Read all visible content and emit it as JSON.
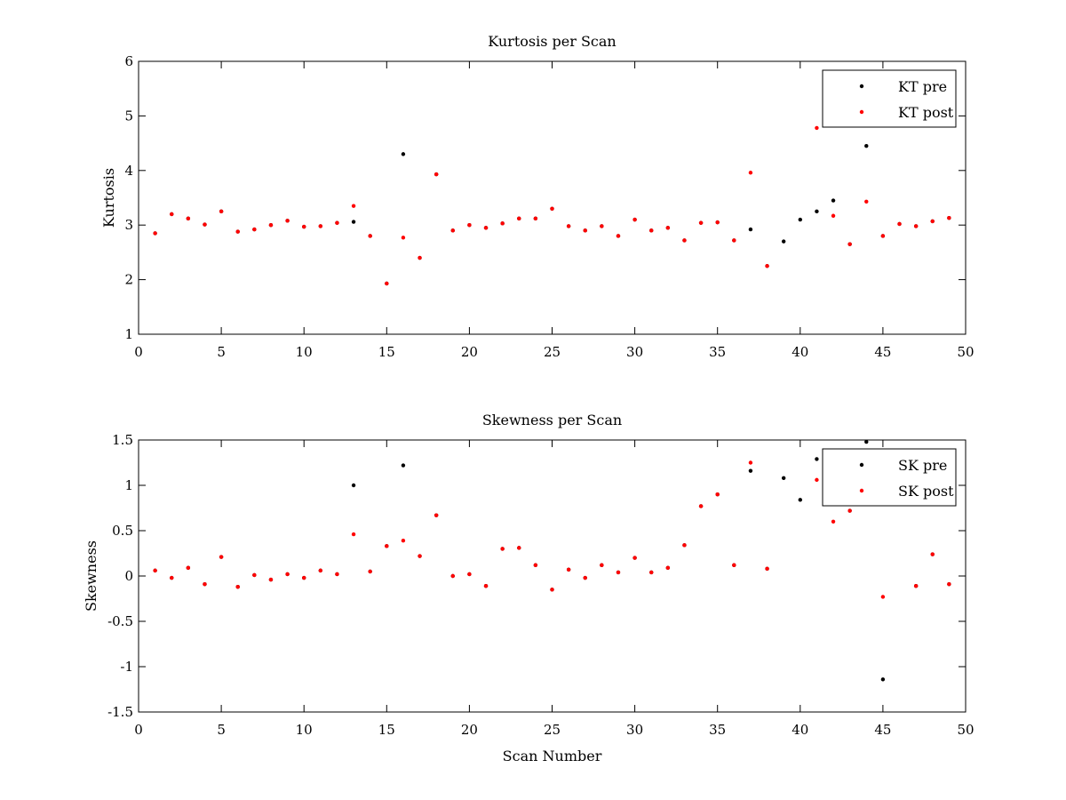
{
  "chart_data": [
    {
      "type": "scatter",
      "title": "Kurtosis per Scan",
      "xlabel": "",
      "ylabel": "Kurtosis",
      "xlim": [
        0,
        50
      ],
      "ylim": [
        1,
        6
      ],
      "xticks": [
        0,
        5,
        10,
        15,
        20,
        25,
        30,
        35,
        40,
        45,
        50
      ],
      "yticks": [
        1,
        2,
        3,
        4,
        5,
        6
      ],
      "xtick_labels": [
        "0",
        "5",
        "10",
        "15",
        "20",
        "25",
        "30",
        "35",
        "40",
        "45",
        "50"
      ],
      "ytick_labels": [
        "1",
        "2",
        "3",
        "4",
        "5",
        "6"
      ],
      "grid": false,
      "legend": "top-right",
      "series": [
        {
          "name": "KT pre",
          "color": "#000000",
          "points": [
            [
              1,
              2.85
            ],
            [
              2,
              3.2
            ],
            [
              3,
              3.12
            ],
            [
              4,
              3.01
            ],
            [
              5,
              3.25
            ],
            [
              6,
              2.88
            ],
            [
              7,
              2.92
            ],
            [
              8,
              3.0
            ],
            [
              9,
              3.08
            ],
            [
              10,
              2.97
            ],
            [
              11,
              2.98
            ],
            [
              12,
              3.04
            ],
            [
              13,
              3.06
            ],
            [
              14,
              2.8
            ],
            [
              15,
              1.93
            ],
            [
              16,
              4.3
            ],
            [
              17,
              2.4
            ],
            [
              18,
              3.93
            ],
            [
              19,
              2.9
            ],
            [
              20,
              3.0
            ],
            [
              21,
              2.95
            ],
            [
              22,
              3.03
            ],
            [
              23,
              3.12
            ],
            [
              24,
              3.12
            ],
            [
              25,
              3.3
            ],
            [
              26,
              2.98
            ],
            [
              27,
              2.9
            ],
            [
              28,
              2.98
            ],
            [
              29,
              2.8
            ],
            [
              30,
              3.1
            ],
            [
              31,
              2.9
            ],
            [
              32,
              2.95
            ],
            [
              33,
              2.72
            ],
            [
              34,
              3.04
            ],
            [
              35,
              3.05
            ],
            [
              36,
              2.72
            ],
            [
              37,
              2.92
            ],
            [
              38,
              2.25
            ],
            [
              39,
              2.7
            ],
            [
              40,
              3.1
            ],
            [
              41,
              3.25
            ],
            [
              42,
              3.45
            ],
            [
              43,
              2.65
            ],
            [
              44,
              4.45
            ],
            [
              45,
              2.8
            ],
            [
              46,
              3.02
            ],
            [
              47,
              2.98
            ],
            [
              48,
              3.07
            ],
            [
              49,
              3.13
            ]
          ]
        },
        {
          "name": "KT post",
          "color": "#ff0000",
          "points": [
            [
              1,
              2.85
            ],
            [
              2,
              3.2
            ],
            [
              3,
              3.12
            ],
            [
              4,
              3.01
            ],
            [
              5,
              3.25
            ],
            [
              6,
              2.88
            ],
            [
              7,
              2.92
            ],
            [
              8,
              3.0
            ],
            [
              9,
              3.08
            ],
            [
              10,
              2.97
            ],
            [
              11,
              2.98
            ],
            [
              12,
              3.04
            ],
            [
              13,
              3.35
            ],
            [
              14,
              2.8
            ],
            [
              15,
              1.93
            ],
            [
              16,
              2.77
            ],
            [
              17,
              2.4
            ],
            [
              18,
              3.93
            ],
            [
              19,
              2.9
            ],
            [
              20,
              3.0
            ],
            [
              21,
              2.95
            ],
            [
              22,
              3.03
            ],
            [
              23,
              3.12
            ],
            [
              24,
              3.12
            ],
            [
              25,
              3.3
            ],
            [
              26,
              2.98
            ],
            [
              27,
              2.9
            ],
            [
              28,
              2.98
            ],
            [
              29,
              2.8
            ],
            [
              30,
              3.1
            ],
            [
              31,
              2.9
            ],
            [
              32,
              2.95
            ],
            [
              33,
              2.72
            ],
            [
              34,
              3.04
            ],
            [
              35,
              3.05
            ],
            [
              36,
              2.72
            ],
            [
              37,
              3.96
            ],
            [
              38,
              2.25
            ],
            [
              41,
              4.78
            ],
            [
              42,
              3.17
            ],
            [
              43,
              2.65
            ],
            [
              44,
              3.43
            ],
            [
              45,
              2.8
            ],
            [
              46,
              3.02
            ],
            [
              47,
              2.98
            ],
            [
              48,
              3.07
            ],
            [
              49,
              3.13
            ]
          ]
        }
      ]
    },
    {
      "type": "scatter",
      "title": "Skewness per Scan",
      "xlabel": "Scan Number",
      "ylabel": "Skewness",
      "xlim": [
        0,
        50
      ],
      "ylim": [
        -1.5,
        1.5
      ],
      "xticks": [
        0,
        5,
        10,
        15,
        20,
        25,
        30,
        35,
        40,
        45,
        50
      ],
      "yticks": [
        -1.5,
        -1,
        -0.5,
        0,
        0.5,
        1,
        1.5
      ],
      "xtick_labels": [
        "0",
        "5",
        "10",
        "15",
        "20",
        "25",
        "30",
        "35",
        "40",
        "45",
        "50"
      ],
      "ytick_labels": [
        "-1.5",
        "-1",
        "-0.5",
        "0",
        "0.5",
        "1",
        "1.5"
      ],
      "grid": false,
      "legend": "top-right",
      "series": [
        {
          "name": "SK pre",
          "color": "#000000",
          "points": [
            [
              1,
              0.06
            ],
            [
              2,
              -0.02
            ],
            [
              3,
              0.09
            ],
            [
              4,
              -0.09
            ],
            [
              5,
              0.21
            ],
            [
              6,
              -0.12
            ],
            [
              7,
              0.01
            ],
            [
              8,
              -0.04
            ],
            [
              9,
              0.02
            ],
            [
              10,
              -0.02
            ],
            [
              11,
              0.06
            ],
            [
              12,
              0.02
            ],
            [
              13,
              1.0
            ],
            [
              14,
              0.05
            ],
            [
              15,
              0.33
            ],
            [
              16,
              1.22
            ],
            [
              17,
              0.22
            ],
            [
              18,
              0.67
            ],
            [
              19,
              0.0
            ],
            [
              20,
              0.02
            ],
            [
              21,
              -0.11
            ],
            [
              22,
              0.3
            ],
            [
              23,
              0.31
            ],
            [
              24,
              0.12
            ],
            [
              25,
              -0.15
            ],
            [
              26,
              0.07
            ],
            [
              27,
              -0.02
            ],
            [
              28,
              0.12
            ],
            [
              29,
              0.04
            ],
            [
              30,
              0.2
            ],
            [
              31,
              0.04
            ],
            [
              32,
              0.09
            ],
            [
              33,
              0.34
            ],
            [
              34,
              0.77
            ],
            [
              35,
              0.9
            ],
            [
              36,
              0.12
            ],
            [
              37,
              1.16
            ],
            [
              38,
              0.08
            ],
            [
              39,
              1.08
            ],
            [
              40,
              0.84
            ],
            [
              41,
              1.29
            ],
            [
              42,
              1.22
            ],
            [
              43,
              0.72
            ],
            [
              44,
              1.48
            ],
            [
              45,
              -1.14
            ],
            [
              47,
              -0.11
            ],
            [
              48,
              0.24
            ],
            [
              49,
              -0.09
            ]
          ]
        },
        {
          "name": "SK post",
          "color": "#ff0000",
          "points": [
            [
              1,
              0.06
            ],
            [
              2,
              -0.02
            ],
            [
              3,
              0.09
            ],
            [
              4,
              -0.09
            ],
            [
              5,
              0.21
            ],
            [
              6,
              -0.12
            ],
            [
              7,
              0.01
            ],
            [
              8,
              -0.04
            ],
            [
              9,
              0.02
            ],
            [
              10,
              -0.02
            ],
            [
              11,
              0.06
            ],
            [
              12,
              0.02
            ],
            [
              13,
              0.46
            ],
            [
              14,
              0.05
            ],
            [
              15,
              0.33
            ],
            [
              16,
              0.39
            ],
            [
              17,
              0.22
            ],
            [
              18,
              0.67
            ],
            [
              19,
              0.0
            ],
            [
              20,
              0.02
            ],
            [
              21,
              -0.11
            ],
            [
              22,
              0.3
            ],
            [
              23,
              0.31
            ],
            [
              24,
              0.12
            ],
            [
              25,
              -0.15
            ],
            [
              26,
              0.07
            ],
            [
              27,
              -0.02
            ],
            [
              28,
              0.12
            ],
            [
              29,
              0.04
            ],
            [
              30,
              0.2
            ],
            [
              31,
              0.04
            ],
            [
              32,
              0.09
            ],
            [
              33,
              0.34
            ],
            [
              34,
              0.77
            ],
            [
              35,
              0.9
            ],
            [
              36,
              0.12
            ],
            [
              37,
              1.25
            ],
            [
              38,
              0.08
            ],
            [
              41,
              1.06
            ],
            [
              42,
              0.6
            ],
            [
              43,
              0.72
            ],
            [
              45,
              -0.23
            ],
            [
              47,
              -0.11
            ],
            [
              48,
              0.24
            ],
            [
              49,
              -0.09
            ]
          ]
        }
      ]
    }
  ]
}
